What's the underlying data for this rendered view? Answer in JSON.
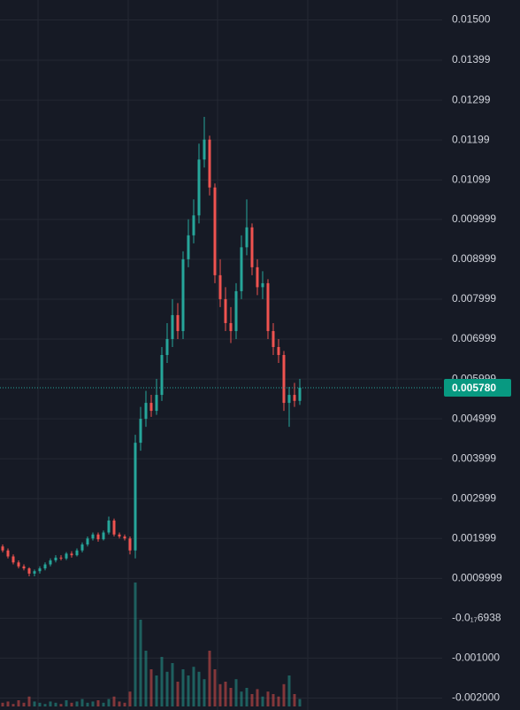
{
  "chart_data": {
    "type": "candlestick",
    "open": [
      0.0018,
      0.0017,
      0.00155,
      0.0014,
      0.0013,
      0.00125,
      0.00112,
      0.00118,
      0.00125,
      0.00135,
      0.00145,
      0.00152,
      0.0015,
      0.00162,
      0.00158,
      0.0017,
      0.00185,
      0.002,
      0.0021,
      0.00198,
      0.00215,
      0.00245,
      0.0021,
      0.00205,
      0.002,
      0.0017,
      0.0044,
      0.005,
      0.0054,
      0.0052,
      0.0056,
      0.0066,
      0.007,
      0.0076,
      0.0072,
      0.009,
      0.0096,
      0.0101,
      0.0115,
      0.012,
      0.0108,
      0.0086,
      0.008,
      0.0074,
      0.0072,
      0.0082,
      0.0093,
      0.0098,
      0.0088,
      0.0083,
      0.0084,
      0.0072,
      0.0068,
      0.0066,
      0.0054,
      0.0056,
      0.00545
    ],
    "high": [
      0.00185,
      0.00175,
      0.0016,
      0.00145,
      0.00135,
      0.00128,
      0.00122,
      0.0013,
      0.0014,
      0.0015,
      0.00158,
      0.00158,
      0.00166,
      0.00168,
      0.00175,
      0.0019,
      0.00205,
      0.00215,
      0.00215,
      0.0022,
      0.00255,
      0.0025,
      0.00215,
      0.0021,
      0.00205,
      0.0046,
      0.0053,
      0.0057,
      0.0056,
      0.006,
      0.0068,
      0.0074,
      0.008,
      0.0079,
      0.0092,
      0.01,
      0.0105,
      0.0119,
      0.01257,
      0.0121,
      0.0109,
      0.009,
      0.0083,
      0.0078,
      0.0084,
      0.0096,
      0.0105,
      0.0099,
      0.009,
      0.0087,
      0.0085,
      0.0074,
      0.007,
      0.0067,
      0.0058,
      0.0059,
      0.006
    ],
    "low": [
      0.00165,
      0.0015,
      0.00135,
      0.00125,
      0.0012,
      0.00105,
      0.00105,
      0.00112,
      0.0012,
      0.0013,
      0.0014,
      0.00145,
      0.00146,
      0.00152,
      0.00155,
      0.00165,
      0.0018,
      0.00195,
      0.00192,
      0.00195,
      0.0021,
      0.00205,
      0.002,
      0.00195,
      0.0016,
      0.0015,
      0.0042,
      0.0048,
      0.00505,
      0.0051,
      0.00545,
      0.0064,
      0.0068,
      0.007,
      0.007,
      0.0088,
      0.0094,
      0.0099,
      0.0113,
      0.0106,
      0.0084,
      0.0078,
      0.0072,
      0.0069,
      0.007,
      0.008,
      0.0091,
      0.0086,
      0.0081,
      0.008,
      0.007,
      0.0066,
      0.0064,
      0.0052,
      0.0048,
      0.0053,
      0.00535
    ],
    "close": [
      0.0017,
      0.00155,
      0.0014,
      0.0013,
      0.00125,
      0.00112,
      0.00118,
      0.00125,
      0.00135,
      0.00145,
      0.00152,
      0.0015,
      0.00162,
      0.00158,
      0.0017,
      0.00185,
      0.002,
      0.0021,
      0.00198,
      0.00215,
      0.00245,
      0.0021,
      0.00205,
      0.002,
      0.0017,
      0.0044,
      0.005,
      0.0054,
      0.0052,
      0.0056,
      0.0066,
      0.007,
      0.0076,
      0.0072,
      0.009,
      0.0096,
      0.0101,
      0.0115,
      0.012,
      0.0108,
      0.0086,
      0.008,
      0.0074,
      0.0072,
      0.0082,
      0.0093,
      0.0098,
      0.0088,
      0.0083,
      0.0084,
      0.0072,
      0.0068,
      0.0066,
      0.0054,
      0.0056,
      0.00545,
      0.00578
    ],
    "volume": [
      3,
      4,
      2,
      5,
      3,
      8,
      4,
      3,
      2,
      4,
      3,
      2,
      5,
      3,
      4,
      6,
      3,
      4,
      5,
      3,
      6,
      8,
      4,
      3,
      12,
      100,
      70,
      45,
      30,
      25,
      40,
      28,
      35,
      20,
      30,
      25,
      32,
      28,
      22,
      45,
      30,
      18,
      20,
      15,
      22,
      12,
      15,
      10,
      14,
      8,
      12,
      10,
      8,
      18,
      25,
      10,
      6
    ],
    "volume_lim": [
      0,
      100
    ],
    "up_color": "#26a69a",
    "down_color": "#ef5350",
    "ylim": [
      -0.0023,
      0.0155
    ],
    "yticks": [
      {
        "value": 0.015,
        "label": "0.01500"
      },
      {
        "value": 0.01399,
        "label": "0.01399"
      },
      {
        "value": 0.01299,
        "label": "0.01299"
      },
      {
        "value": 0.01199,
        "label": "0.01199"
      },
      {
        "value": 0.01099,
        "label": "0.01099"
      },
      {
        "value": 0.009999,
        "label": "0.009999"
      },
      {
        "value": 0.008999,
        "label": "0.008999"
      },
      {
        "value": 0.007999,
        "label": "0.007999"
      },
      {
        "value": 0.006999,
        "label": "0.006999"
      },
      {
        "value": 0.005999,
        "label": "0.005999"
      },
      {
        "value": 0.004999,
        "label": "0.004999"
      },
      {
        "value": 0.003999,
        "label": "0.003999"
      },
      {
        "value": 0.002999,
        "label": "0.002999"
      },
      {
        "value": 0.001999,
        "label": "0.001999"
      },
      {
        "value": 0.0009999,
        "label": "0.0009999"
      },
      {
        "value": -6.938e-18,
        "label": "-0.0₁₇6938"
      },
      {
        "value": -0.001,
        "label": "-0.001000"
      },
      {
        "value": -0.002,
        "label": "-0.002000"
      }
    ],
    "last_price": {
      "value": 0.00578,
      "label": "0.005780"
    },
    "grid": true
  }
}
